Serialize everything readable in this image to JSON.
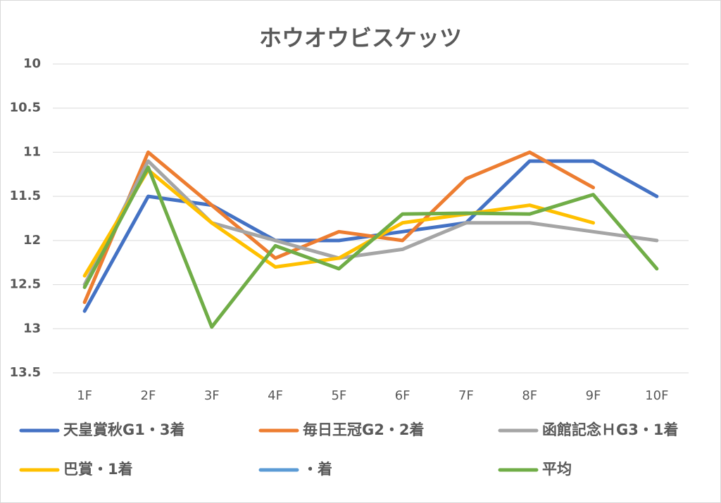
{
  "chart_data": {
    "type": "line",
    "title": "ホウオウビスケッツ",
    "categories": [
      "1F",
      "2F",
      "3F",
      "4F",
      "5F",
      "6F",
      "7F",
      "8F",
      "9F",
      "10F"
    ],
    "series": [
      {
        "name": "天皇賞秋G1・3着",
        "color": "#4472c4",
        "values": [
          12.8,
          11.5,
          11.6,
          12.0,
          12.0,
          11.9,
          11.8,
          11.1,
          11.1,
          11.5
        ]
      },
      {
        "name": "毎日王冠G2・2着",
        "color": "#ed7d31",
        "values": [
          12.7,
          11.0,
          11.6,
          12.2,
          11.9,
          12.0,
          11.3,
          11.0,
          11.4,
          null
        ]
      },
      {
        "name": "函館記念ＨG3・1着",
        "color": "#a5a5a5",
        "values": [
          12.5,
          11.1,
          11.8,
          12.0,
          12.2,
          12.1,
          11.8,
          11.8,
          11.9,
          12.0
        ]
      },
      {
        "name": "巴賞・1着",
        "color": "#ffc000",
        "values": [
          12.4,
          11.2,
          11.8,
          12.3,
          12.2,
          11.8,
          11.7,
          11.6,
          11.8,
          null
        ]
      },
      {
        "name": "・着",
        "color": "#5b9bd5",
        "values": [
          null,
          null,
          null,
          null,
          null,
          null,
          null,
          null,
          null,
          null
        ]
      },
      {
        "name": "平均",
        "color": "#70ad47",
        "values": [
          12.53,
          11.17,
          12.98,
          12.06,
          12.32,
          11.7,
          11.69,
          11.7,
          11.48,
          12.32
        ]
      }
    ],
    "ylim": [
      10,
      13.5
    ],
    "yticks": [
      10,
      10.5,
      11,
      11.5,
      12,
      12.5,
      13,
      13.5
    ],
    "y_inverted": true,
    "grid": true,
    "legend": "bottom"
  }
}
